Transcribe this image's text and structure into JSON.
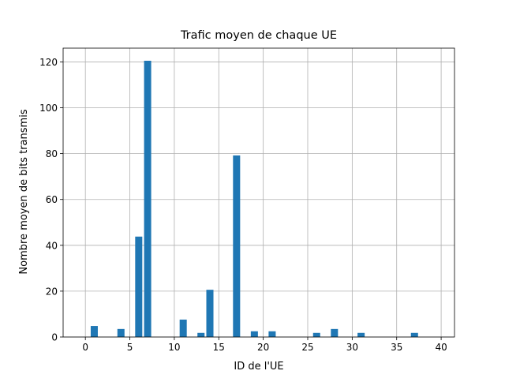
{
  "chart_data": {
    "type": "bar",
    "title": "Trafic moyen de chaque UE",
    "xlabel": "ID de l'UE",
    "ylabel": "Nombre moyen de bits transmis",
    "xlim": [
      -2.5,
      41.5
    ],
    "ylim": [
      0,
      126
    ],
    "xticks": [
      0,
      5,
      10,
      15,
      20,
      25,
      30,
      35,
      40
    ],
    "yticks": [
      0,
      20,
      40,
      60,
      80,
      100,
      120
    ],
    "grid": true,
    "bar_color": "#1f77b4",
    "bar_width": 0.8,
    "x": [
      1,
      4,
      6,
      7,
      11,
      13,
      14,
      17,
      19,
      21,
      26,
      28,
      31,
      37
    ],
    "values": [
      4.8,
      3.5,
      43.8,
      120.5,
      7.6,
      1.8,
      20.6,
      79.2,
      2.5,
      2.5,
      1.8,
      3.5,
      1.8,
      1.8
    ]
  }
}
